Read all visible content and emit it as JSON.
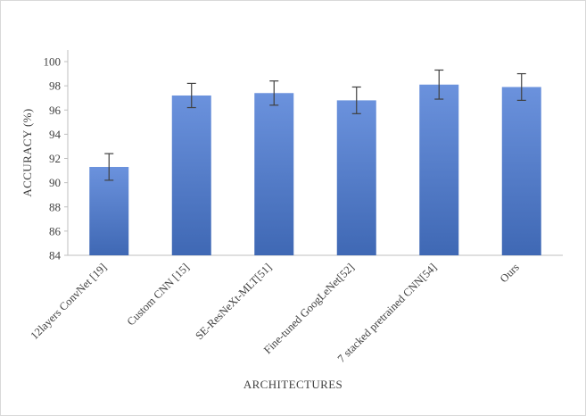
{
  "chart_data": {
    "type": "bar",
    "title": "",
    "categories": [
      "12layers ConvNet [19]",
      "Custom CNN [15]",
      "SE-ResNeXt-MLT[51]",
      "Fine-tuned GoogLeNet[52]",
      "7 stacked pretrained CNN[54]",
      "Ours"
    ],
    "values": [
      91.3,
      97.2,
      97.4,
      96.8,
      98.1,
      97.9
    ],
    "errors": [
      1.1,
      1.0,
      1.0,
      1.1,
      1.2,
      1.1
    ],
    "xlabel": "ARCHITECTURES",
    "ylabel": "ACCURACY (%)",
    "ylim": [
      84,
      100
    ],
    "ytick_step": 2,
    "grid": false,
    "legend_position": "none",
    "bar_gradient_top": "#6b92dd",
    "bar_gradient_bottom": "#3f68b4",
    "axis_color": "#bfbfbf",
    "error_bar_color": "#404040",
    "text_color": "#404040",
    "frame_border_color": "#d9d9d9"
  }
}
